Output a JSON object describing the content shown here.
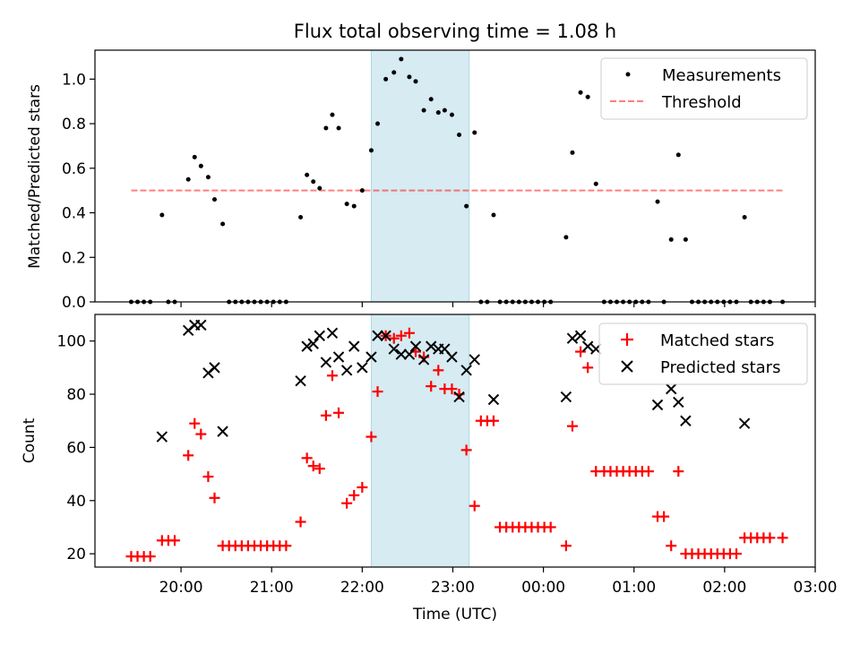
{
  "chart_data": {
    "title": "Flux total observing time = 1.08 h",
    "x_ticks": [
      "20:00",
      "21:00",
      "22:00",
      "23:00",
      "00:00",
      "01:00",
      "02:00",
      "03:00"
    ],
    "x_tick_hours": [
      20,
      21,
      22,
      23,
      24,
      25,
      26,
      27
    ],
    "xlabel": "Time (UTC)",
    "xlim_hours": [
      19.05,
      27.0
    ],
    "shaded_span_hours": [
      22.1,
      23.18
    ],
    "shade_color": "#add8e6",
    "top": {
      "type": "scatter",
      "ylabel": "Matched/Predicted stars",
      "ylim": [
        0,
        1.13
      ],
      "yticks": [
        0.0,
        0.2,
        0.4,
        0.6,
        0.8,
        1.0
      ],
      "ytick_labels": [
        "0.0",
        "0.2",
        "0.4",
        "0.6",
        "0.8",
        "1.0"
      ],
      "legend_position": "upper right",
      "series": [
        {
          "name": "Measurements",
          "color": "#000000",
          "points": [
            [
              19.45,
              0
            ],
            [
              19.52,
              0
            ],
            [
              19.59,
              0
            ],
            [
              19.66,
              0
            ],
            [
              19.79,
              0.39
            ],
            [
              19.86,
              0
            ],
            [
              19.93,
              0
            ],
            [
              20.08,
              0.55
            ],
            [
              20.15,
              0.65
            ],
            [
              20.22,
              0.61
            ],
            [
              20.3,
              0.56
            ],
            [
              20.37,
              0.46
            ],
            [
              20.46,
              0.35
            ],
            [
              20.53,
              0
            ],
            [
              20.6,
              0
            ],
            [
              20.67,
              0
            ],
            [
              20.74,
              0
            ],
            [
              20.81,
              0
            ],
            [
              20.88,
              0
            ],
            [
              20.95,
              0
            ],
            [
              21.02,
              0
            ],
            [
              21.09,
              0
            ],
            [
              21.16,
              0
            ],
            [
              21.32,
              0.38
            ],
            [
              21.39,
              0.57
            ],
            [
              21.46,
              0.54
            ],
            [
              21.53,
              0.51
            ],
            [
              21.6,
              0.78
            ],
            [
              21.67,
              0.84
            ],
            [
              21.74,
              0.78
            ],
            [
              21.83,
              0.44
            ],
            [
              21.91,
              0.43
            ],
            [
              22.0,
              0.5
            ],
            [
              22.1,
              0.68
            ],
            [
              22.17,
              0.8
            ],
            [
              22.26,
              1.0
            ],
            [
              22.35,
              1.03
            ],
            [
              22.43,
              1.09
            ],
            [
              22.52,
              1.01
            ],
            [
              22.59,
              0.99
            ],
            [
              22.68,
              0.86
            ],
            [
              22.76,
              0.91
            ],
            [
              22.84,
              0.85
            ],
            [
              22.91,
              0.86
            ],
            [
              22.99,
              0.84
            ],
            [
              23.07,
              0.75
            ],
            [
              23.15,
              0.43
            ],
            [
              23.24,
              0.76
            ],
            [
              23.31,
              0
            ],
            [
              23.38,
              0
            ],
            [
              23.45,
              0.39
            ],
            [
              23.52,
              0
            ],
            [
              23.59,
              0
            ],
            [
              23.66,
              0
            ],
            [
              23.73,
              0
            ],
            [
              23.8,
              0
            ],
            [
              23.87,
              0
            ],
            [
              23.94,
              0
            ],
            [
              24.01,
              0
            ],
            [
              24.08,
              0
            ],
            [
              24.25,
              0.29
            ],
            [
              24.32,
              0.67
            ],
            [
              24.41,
              0.94
            ],
            [
              24.49,
              0.92
            ],
            [
              24.58,
              0.53
            ],
            [
              24.67,
              0
            ],
            [
              24.74,
              0
            ],
            [
              24.81,
              0
            ],
            [
              24.88,
              0
            ],
            [
              24.95,
              0
            ],
            [
              25.02,
              0
            ],
            [
              25.09,
              0
            ],
            [
              25.16,
              0
            ],
            [
              25.26,
              0.45
            ],
            [
              25.33,
              0
            ],
            [
              25.41,
              0.28
            ],
            [
              25.49,
              0.66
            ],
            [
              25.57,
              0.28
            ],
            [
              25.64,
              0
            ],
            [
              25.71,
              0
            ],
            [
              25.78,
              0
            ],
            [
              25.85,
              0
            ],
            [
              25.92,
              0
            ],
            [
              25.99,
              0
            ],
            [
              26.06,
              0
            ],
            [
              26.13,
              0
            ],
            [
              26.22,
              0.38
            ],
            [
              26.29,
              0
            ],
            [
              26.36,
              0
            ],
            [
              26.43,
              0
            ],
            [
              26.5,
              0
            ],
            [
              26.64,
              0
            ]
          ]
        },
        {
          "name": "Threshold",
          "color": "#ff0000",
          "line": [
            [
              19.45,
              0.5
            ],
            [
              26.64,
              0.5
            ]
          ]
        }
      ]
    },
    "bottom": {
      "type": "scatter",
      "ylabel": "Count",
      "ylim": [
        15,
        110
      ],
      "yticks": [
        20,
        40,
        60,
        80,
        100
      ],
      "ytick_labels": [
        "20",
        "40",
        "60",
        "80",
        "100"
      ],
      "legend_position": "upper right",
      "series": [
        {
          "name": "Matched stars",
          "color": "#ff0000",
          "marker": "plus",
          "points": [
            [
              19.45,
              19
            ],
            [
              19.52,
              19
            ],
            [
              19.59,
              19
            ],
            [
              19.66,
              19
            ],
            [
              19.79,
              25
            ],
            [
              19.86,
              25
            ],
            [
              19.93,
              25
            ],
            [
              20.08,
              57
            ],
            [
              20.15,
              69
            ],
            [
              20.22,
              65
            ],
            [
              20.3,
              49
            ],
            [
              20.37,
              41
            ],
            [
              20.46,
              23
            ],
            [
              20.53,
              23
            ],
            [
              20.6,
              23
            ],
            [
              20.67,
              23
            ],
            [
              20.74,
              23
            ],
            [
              20.81,
              23
            ],
            [
              20.88,
              23
            ],
            [
              20.95,
              23
            ],
            [
              21.02,
              23
            ],
            [
              21.09,
              23
            ],
            [
              21.16,
              23
            ],
            [
              21.32,
              32
            ],
            [
              21.39,
              56
            ],
            [
              21.46,
              53
            ],
            [
              21.53,
              52
            ],
            [
              21.6,
              72
            ],
            [
              21.67,
              87
            ],
            [
              21.74,
              73
            ],
            [
              21.83,
              39
            ],
            [
              21.91,
              42
            ],
            [
              22.0,
              45
            ],
            [
              22.1,
              64
            ],
            [
              22.17,
              81
            ],
            [
              22.26,
              102
            ],
            [
              22.35,
              101
            ],
            [
              22.43,
              102
            ],
            [
              22.52,
              103
            ],
            [
              22.59,
              96
            ],
            [
              22.68,
              94
            ],
            [
              22.76,
              83
            ],
            [
              22.84,
              89
            ],
            [
              22.91,
              82
            ],
            [
              22.99,
              82
            ],
            [
              23.07,
              80
            ],
            [
              23.15,
              59
            ],
            [
              23.24,
              38
            ],
            [
              23.31,
              70
            ],
            [
              23.38,
              70
            ],
            [
              23.45,
              70
            ],
            [
              23.52,
              30
            ],
            [
              23.59,
              30
            ],
            [
              23.66,
              30
            ],
            [
              23.73,
              30
            ],
            [
              23.8,
              30
            ],
            [
              23.87,
              30
            ],
            [
              23.94,
              30
            ],
            [
              24.01,
              30
            ],
            [
              24.08,
              30
            ],
            [
              24.25,
              23
            ],
            [
              24.32,
              68
            ],
            [
              24.41,
              96
            ],
            [
              24.49,
              90
            ],
            [
              24.58,
              51
            ],
            [
              24.67,
              51
            ],
            [
              24.74,
              51
            ],
            [
              24.81,
              51
            ],
            [
              24.88,
              51
            ],
            [
              24.95,
              51
            ],
            [
              25.02,
              51
            ],
            [
              25.09,
              51
            ],
            [
              25.16,
              51
            ],
            [
              25.26,
              34
            ],
            [
              25.33,
              34
            ],
            [
              25.41,
              23
            ],
            [
              25.49,
              51
            ],
            [
              25.57,
              20
            ],
            [
              25.64,
              20
            ],
            [
              25.71,
              20
            ],
            [
              25.78,
              20
            ],
            [
              25.85,
              20
            ],
            [
              25.92,
              20
            ],
            [
              25.99,
              20
            ],
            [
              26.06,
              20
            ],
            [
              26.13,
              20
            ],
            [
              26.22,
              26
            ],
            [
              26.29,
              26
            ],
            [
              26.36,
              26
            ],
            [
              26.43,
              26
            ],
            [
              26.5,
              26
            ],
            [
              26.64,
              26
            ]
          ]
        },
        {
          "name": "Predicted stars",
          "color": "#000000",
          "marker": "x",
          "points": [
            [
              19.79,
              64
            ],
            [
              20.08,
              104
            ],
            [
              20.15,
              106
            ],
            [
              20.22,
              106
            ],
            [
              20.3,
              88
            ],
            [
              20.37,
              90
            ],
            [
              20.46,
              66
            ],
            [
              21.32,
              85
            ],
            [
              21.39,
              98
            ],
            [
              21.46,
              99
            ],
            [
              21.53,
              102
            ],
            [
              21.6,
              92
            ],
            [
              21.67,
              103
            ],
            [
              21.74,
              94
            ],
            [
              21.83,
              89
            ],
            [
              21.91,
              98
            ],
            [
              22.0,
              90
            ],
            [
              22.1,
              94
            ],
            [
              22.17,
              102
            ],
            [
              22.26,
              102
            ],
            [
              22.35,
              97
            ],
            [
              22.43,
              95
            ],
            [
              22.52,
              95
            ],
            [
              22.59,
              98
            ],
            [
              22.68,
              93
            ],
            [
              22.76,
              98
            ],
            [
              22.84,
              97
            ],
            [
              22.91,
              97
            ],
            [
              22.99,
              94
            ],
            [
              23.07,
              79
            ],
            [
              23.15,
              89
            ],
            [
              23.24,
              93
            ],
            [
              23.45,
              78
            ],
            [
              24.25,
              79
            ],
            [
              24.32,
              101
            ],
            [
              24.41,
              102
            ],
            [
              24.49,
              98
            ],
            [
              24.58,
              97
            ],
            [
              25.26,
              76
            ],
            [
              25.41,
              82
            ],
            [
              25.49,
              77
            ],
            [
              25.57,
              70
            ],
            [
              26.22,
              69
            ]
          ]
        }
      ]
    }
  }
}
